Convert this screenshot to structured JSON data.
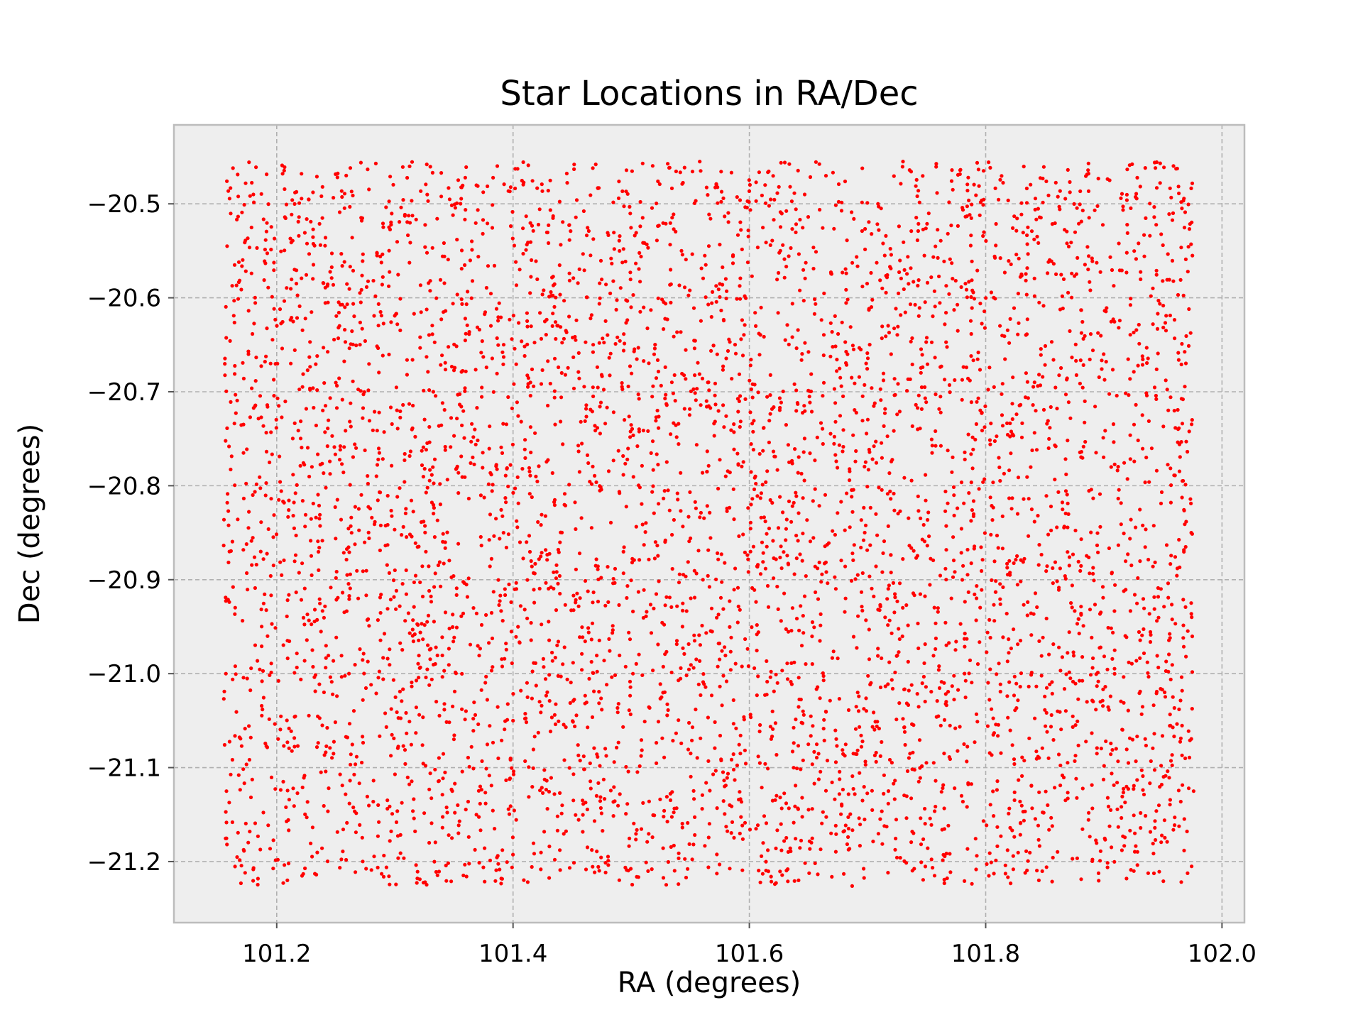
{
  "chart_data": {
    "type": "scatter",
    "title": "Star Locations in RA/Dec",
    "xlabel": "RA (degrees)",
    "ylabel": "Dec (degrees)",
    "xlim": [
      101.113,
      102.019
    ],
    "ylim": [
      -21.265,
      -20.416
    ],
    "xticks": [
      101.2,
      101.4,
      101.6,
      101.8,
      102.0
    ],
    "xtick_labels": [
      "101.2",
      "101.4",
      "101.6",
      "101.8",
      "102.0"
    ],
    "yticks": [
      -20.5,
      -20.6,
      -20.7,
      -20.8,
      -20.9,
      -21.0,
      -21.1,
      -21.2
    ],
    "ytick_labels": [
      "−20.5",
      "−20.6",
      "−20.7",
      "−20.8",
      "−20.9",
      "−21.0",
      "−21.1",
      "−21.2"
    ],
    "grid": true,
    "legend": "none",
    "marker_color": "#ff0000",
    "background_color": "#eeeeee",
    "grid_color": "#b0b0b0",
    "series": [
      {
        "distribution": "uniform random field of stars",
        "approx_count": 5000,
        "ra_range": [
          101.155,
          101.975
        ],
        "dec_range": [
          -21.225,
          -20.455
        ],
        "sample_points": [
          [
            101.163,
            -20.462
          ],
          [
            101.205,
            -20.468
          ],
          [
            101.296,
            -20.471
          ],
          [
            101.327,
            -20.458
          ],
          [
            101.47,
            -20.458
          ],
          [
            101.558,
            -20.455
          ],
          [
            101.63,
            -20.456
          ],
          [
            101.73,
            -20.455
          ],
          [
            101.887,
            -20.457
          ],
          [
            101.943,
            -20.456
          ],
          [
            101.158,
            -20.545
          ],
          [
            101.168,
            -20.562
          ],
          [
            101.965,
            -20.581
          ],
          [
            101.972,
            -20.612
          ],
          [
            101.967,
            -20.708
          ],
          [
            101.159,
            -20.827
          ],
          [
            101.16,
            -20.87
          ],
          [
            101.157,
            -21.0
          ],
          [
            101.974,
            -20.85
          ],
          [
            101.976,
            -21.125
          ],
          [
            101.209,
            -21.22
          ],
          [
            101.39,
            -21.218
          ],
          [
            101.54,
            -21.224
          ],
          [
            101.687,
            -21.226
          ],
          [
            101.845,
            -21.22
          ],
          [
            101.96,
            -21.153
          ],
          [
            101.453,
            -20.645
          ],
          [
            101.58,
            -20.79
          ],
          [
            101.72,
            -20.66
          ],
          [
            101.82,
            -20.88
          ],
          [
            101.3,
            -20.89
          ],
          [
            101.4,
            -21.05
          ]
        ]
      }
    ]
  }
}
